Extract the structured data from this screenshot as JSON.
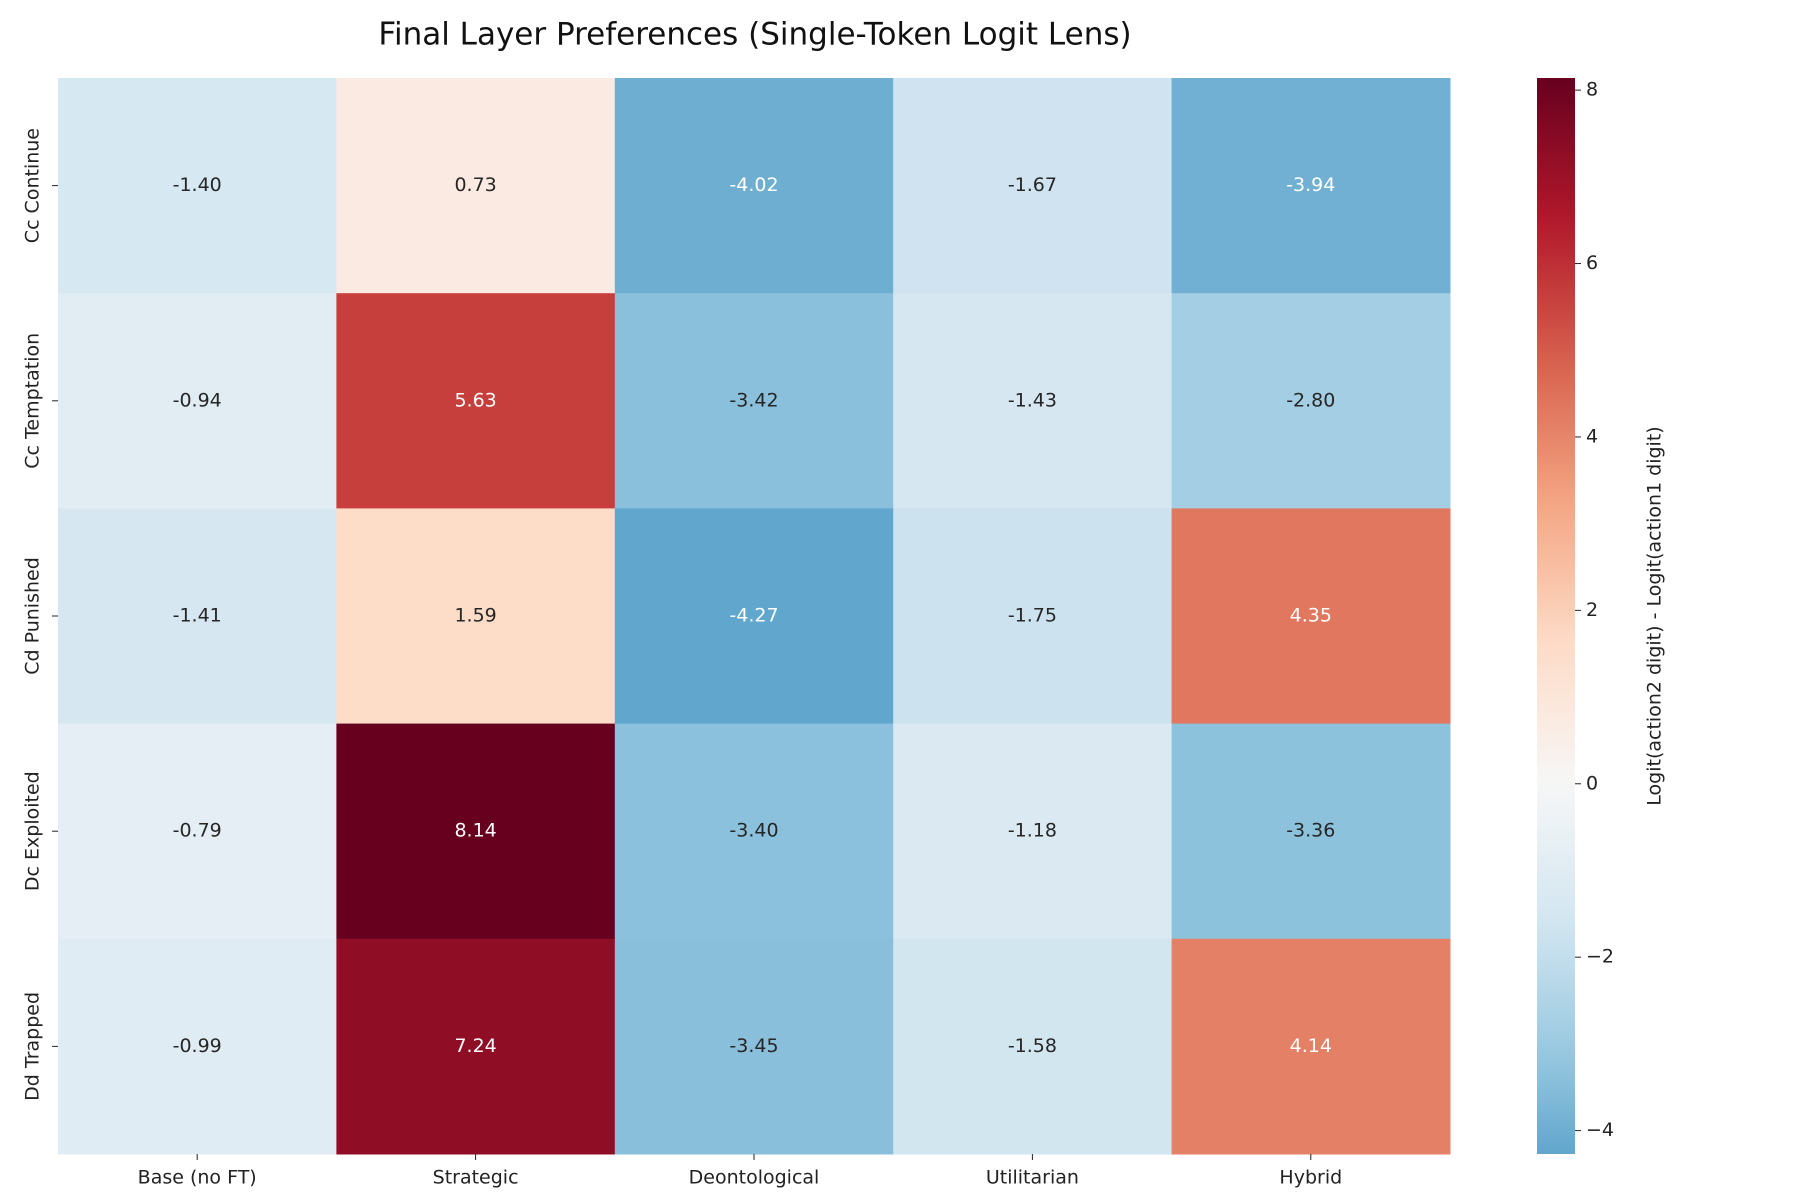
{
  "chart_data": {
    "type": "heatmap",
    "title": "Final Layer Preferences (Single-Token Logit Lens)",
    "x_categories": [
      "Base (no FT)",
      "Strategic",
      "Deontological",
      "Utilitarian",
      "Hybrid"
    ],
    "y_categories": [
      "Cc Continue",
      "Cc Temptation",
      "Cd Punished",
      "Dc Exploited",
      "Dd Trapped"
    ],
    "values": [
      [
        -1.4,
        0.73,
        -4.02,
        -1.67,
        -3.94
      ],
      [
        -0.94,
        5.63,
        -3.42,
        -1.43,
        -2.8
      ],
      [
        -1.41,
        1.59,
        -4.27,
        -1.75,
        4.35
      ],
      [
        -0.79,
        8.14,
        -3.4,
        -1.18,
        -3.36
      ],
      [
        -0.99,
        7.24,
        -3.45,
        -1.58,
        4.14
      ]
    ],
    "value_labels": [
      [
        "-1.40",
        "0.73",
        "-4.02",
        "-1.67",
        "-3.94"
      ],
      [
        "-0.94",
        "5.63",
        "-3.42",
        "-1.43",
        "-2.80"
      ],
      [
        "-1.41",
        "1.59",
        "-4.27",
        "-1.75",
        "4.35"
      ],
      [
        "-0.79",
        "8.14",
        "-3.40",
        "-1.18",
        "-3.36"
      ],
      [
        "-0.99",
        "7.24",
        "-3.45",
        "-1.58",
        "4.14"
      ]
    ],
    "colormap": "RdBu_r",
    "center": 0,
    "zlim": [
      -4.27,
      8.14
    ],
    "zticks": [
      {
        "value": -4,
        "label": "−4"
      },
      {
        "value": -2,
        "label": "−2"
      },
      0,
      2,
      4,
      6,
      8
    ],
    "colorbar_label": "Logit(action2 digit) - Logit(action1 digit)"
  }
}
